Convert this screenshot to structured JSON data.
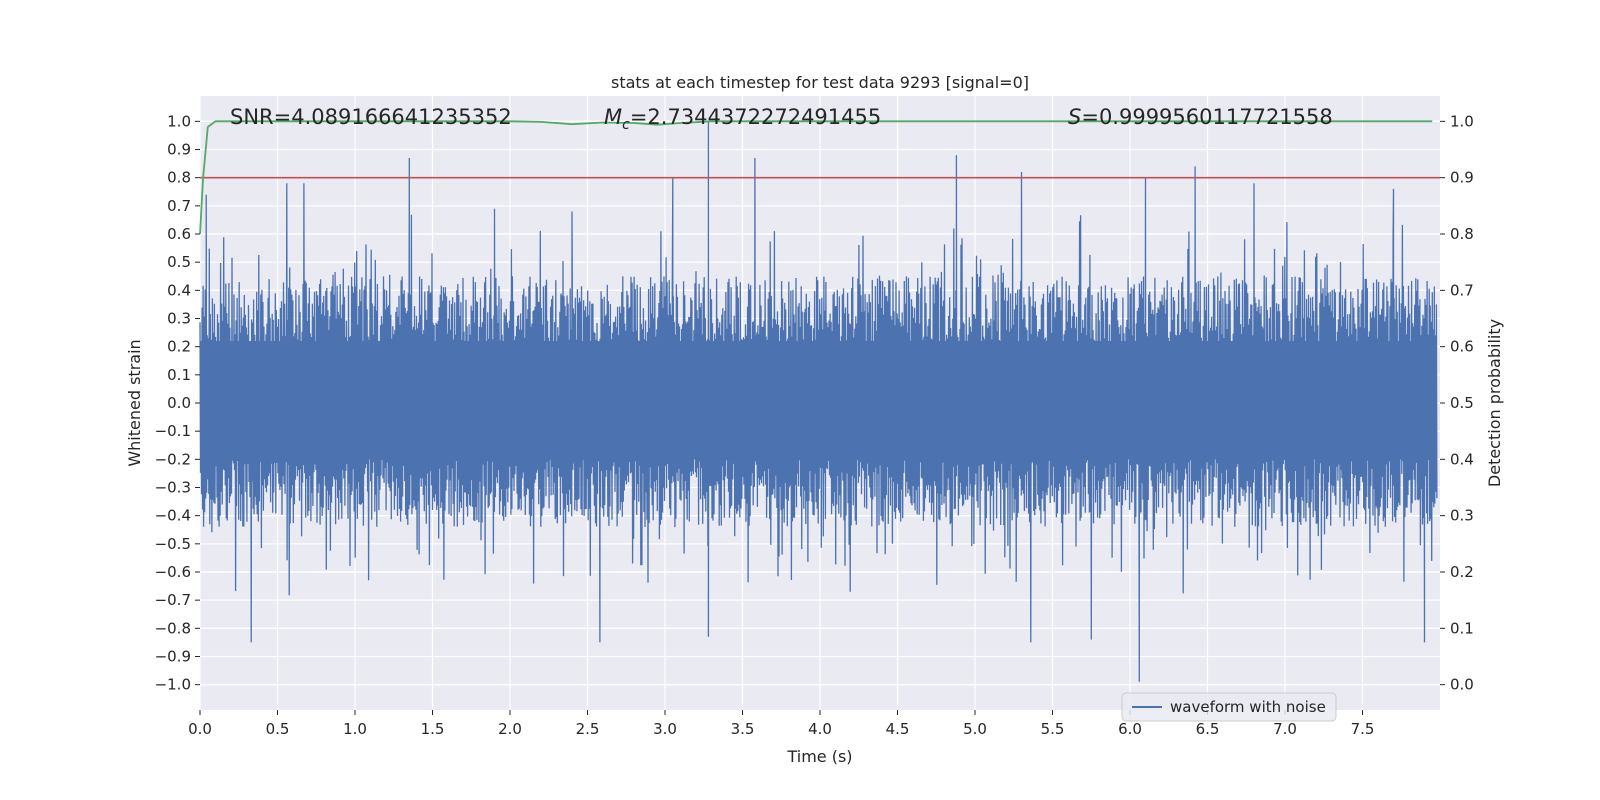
{
  "chart_data": {
    "type": "line",
    "title": "stats at each timestep for test data 9293 [signal=0]",
    "xlabel": "Time (s)",
    "ylabel_left": "Whitened strain",
    "ylabel_right": "Detection probability",
    "xlim": [
      0.0,
      8.0
    ],
    "ylim_left": [
      -1.09,
      1.09
    ],
    "ylim_right": [
      -0.045,
      1.045
    ],
    "x_ticks": [
      "0.0",
      "0.5",
      "1.0",
      "1.5",
      "2.0",
      "2.5",
      "3.0",
      "3.5",
      "4.0",
      "4.5",
      "5.0",
      "5.5",
      "6.0",
      "6.5",
      "7.0",
      "7.5"
    ],
    "x_tick_values": [
      0.0,
      0.5,
      1.0,
      1.5,
      2.0,
      2.5,
      3.0,
      3.5,
      4.0,
      4.5,
      5.0,
      5.5,
      6.0,
      6.5,
      7.0,
      7.5
    ],
    "y_left_ticks": [
      "1.0",
      "0.9",
      "0.8",
      "0.7",
      "0.6",
      "0.5",
      "0.4",
      "0.3",
      "0.2",
      "0.1",
      "0.0",
      "−0.1",
      "−0.2",
      "−0.3",
      "−0.4",
      "−0.5",
      "−0.6",
      "−0.7",
      "−0.8",
      "−0.9",
      "−1.0"
    ],
    "y_left_tick_values": [
      1.0,
      0.9,
      0.8,
      0.7,
      0.6,
      0.5,
      0.4,
      0.3,
      0.2,
      0.1,
      0.0,
      -0.1,
      -0.2,
      -0.3,
      -0.4,
      -0.5,
      -0.6,
      -0.7,
      -0.8,
      -0.9,
      -1.0
    ],
    "y_right_ticks": [
      "1.0",
      "0.9",
      "0.8",
      "0.7",
      "0.6",
      "0.5",
      "0.4",
      "0.3",
      "0.2",
      "0.1",
      "0.0"
    ],
    "y_right_tick_values": [
      1.0,
      0.9,
      0.8,
      0.7,
      0.6,
      0.5,
      0.4,
      0.3,
      0.2,
      0.1,
      0.0
    ],
    "annotations": {
      "snr": "SNR=4.089166641235352",
      "mc_symbol": "M",
      "mc_subscript": "c",
      "mc_value": "=2.7344372272491455",
      "s_symbol": "S",
      "s_value": "=0.9999560117721558"
    },
    "threshold": {
      "value": 0.9,
      "axis": "right",
      "color": "#c44e52"
    },
    "series": [
      {
        "name": "waveform with noise",
        "axis": "left",
        "color": "#4c72b0",
        "duration_s": 7.98,
        "typical_envelope_max": 0.45,
        "typical_envelope_min": -0.4,
        "peaks": [
          {
            "t": 0.04,
            "v": 0.74
          },
          {
            "t": 0.56,
            "v": 0.78
          },
          {
            "t": 0.67,
            "v": 0.78
          },
          {
            "t": 1.35,
            "v": 0.87
          },
          {
            "t": 1.9,
            "v": 0.69
          },
          {
            "t": 2.4,
            "v": 0.68
          },
          {
            "t": 3.05,
            "v": 0.8
          },
          {
            "t": 3.28,
            "v": 1.0
          },
          {
            "t": 3.58,
            "v": 0.87
          },
          {
            "t": 4.88,
            "v": 0.88
          },
          {
            "t": 5.3,
            "v": 0.82
          },
          {
            "t": 6.1,
            "v": 0.8
          },
          {
            "t": 6.42,
            "v": 0.84
          },
          {
            "t": 6.8,
            "v": 0.78
          },
          {
            "t": 7.7,
            "v": 0.76
          },
          {
            "t": 0.33,
            "v": -0.85
          },
          {
            "t": 2.58,
            "v": -0.85
          },
          {
            "t": 3.28,
            "v": -0.83
          },
          {
            "t": 5.36,
            "v": -0.85
          },
          {
            "t": 5.75,
            "v": -0.84
          },
          {
            "t": 6.06,
            "v": -0.99
          },
          {
            "t": 7.9,
            "v": -0.85
          }
        ]
      },
      {
        "name": "detection probability",
        "axis": "right",
        "color": "#55a868",
        "x": [
          0.0,
          0.02,
          0.05,
          0.1,
          0.3,
          1.0,
          2.0,
          2.2,
          2.4,
          2.6,
          2.8,
          2.95,
          3.1,
          3.3,
          4.0,
          5.0,
          6.0,
          7.0,
          7.95
        ],
        "y": [
          0.8,
          0.9,
          0.99,
          1.0,
          1.0,
          1.0,
          1.0,
          0.999,
          0.995,
          0.998,
          0.997,
          0.994,
          0.997,
          1.0,
          1.0,
          1.0,
          1.0,
          1.0,
          1.0
        ]
      }
    ],
    "legend": {
      "label": "waveform with noise",
      "placement": "lower-center-right"
    }
  }
}
